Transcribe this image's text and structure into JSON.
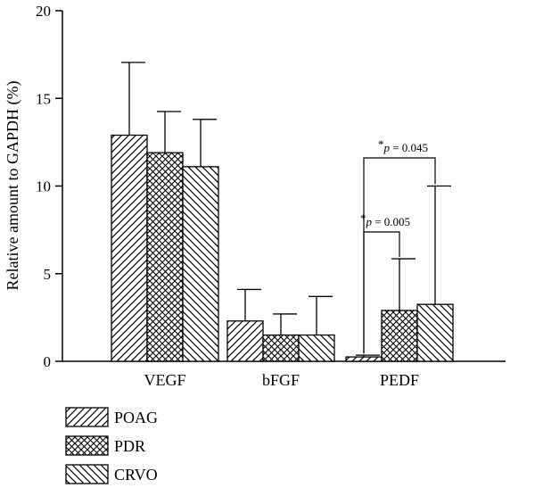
{
  "chart_data": {
    "type": "bar",
    "title": "",
    "xlabel": "",
    "ylabel": "Relative amount to GAPDH (%)",
    "ylim": [
      0,
      20
    ],
    "yticks": [
      "0",
      "5",
      "10",
      "15",
      "20"
    ],
    "categories": [
      "VEGF",
      "bFGF",
      "PEDF"
    ],
    "series": [
      {
        "name": "POAG",
        "values": [
          12.9,
          2.3,
          0.25
        ],
        "errors": [
          4.15,
          1.8,
          0.1
        ],
        "pattern": "diagonal-up"
      },
      {
        "name": "PDR",
        "values": [
          11.9,
          1.5,
          2.9
        ],
        "errors": [
          2.35,
          1.2,
          2.95
        ],
        "pattern": "crosshatch"
      },
      {
        "name": "CRVO",
        "values": [
          11.1,
          1.5,
          3.25
        ],
        "errors": [
          2.7,
          2.2,
          6.75
        ],
        "pattern": "diagonal-down"
      }
    ],
    "grid": false,
    "legend_position": "bottom-left",
    "annotations": [
      {
        "category": "PEDF",
        "from_series": 0,
        "to_series": 1,
        "star": "*",
        "p_label": "p",
        "p_value_text": " = 0.005"
      },
      {
        "category": "PEDF",
        "from_series": 0,
        "to_series": 2,
        "star": "*",
        "p_label": "p",
        "p_value_text": " = 0.045"
      }
    ]
  }
}
